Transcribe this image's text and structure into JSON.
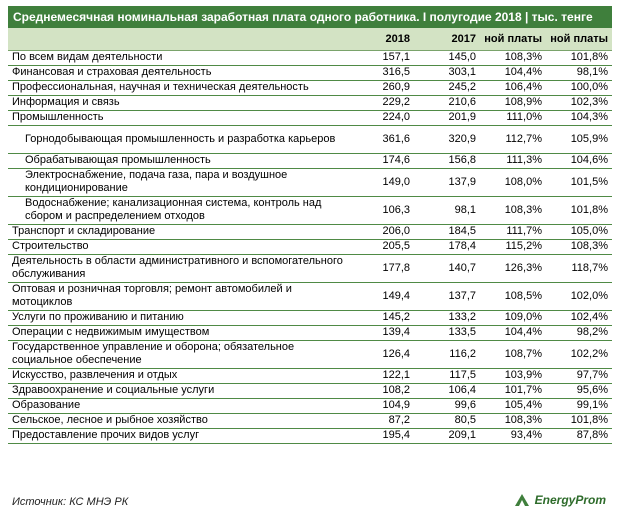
{
  "title": "Среднемесячная номинальная заработная плата одного работника. I полугодие 2018 | тыс. тенге",
  "headers": [
    "",
    "2018",
    "2017",
    "ной платы",
    "ной платы"
  ],
  "rows": [
    {
      "name": "По всем видам деятельности",
      "v2018": "157,1",
      "v2017": "145,0",
      "p1": "108,3%",
      "p2": "101,8%",
      "sub": false,
      "tall": false
    },
    {
      "name": "Финансовая и страховая деятельность",
      "v2018": "316,5",
      "v2017": "303,1",
      "p1": "104,4%",
      "p2": "98,1%",
      "sub": false,
      "tall": false
    },
    {
      "name": "Профессиональная, научная и техническая деятельность",
      "v2018": "260,9",
      "v2017": "245,2",
      "p1": "106,4%",
      "p2": "100,0%",
      "sub": false,
      "tall": false
    },
    {
      "name": "Информация и связь",
      "v2018": "229,2",
      "v2017": "210,6",
      "p1": "108,9%",
      "p2": "102,3%",
      "sub": false,
      "tall": false
    },
    {
      "name": "Промышленность",
      "v2018": "224,0",
      "v2017": "201,9",
      "p1": "111,0%",
      "p2": "104,3%",
      "sub": false,
      "tall": false
    },
    {
      "name": "Горнодобывающая промышленность и разработка карьеров",
      "v2018": "361,6",
      "v2017": "320,9",
      "p1": "112,7%",
      "p2": "105,9%",
      "sub": true,
      "tall": true
    },
    {
      "name": "Обрабатывающая промышленность",
      "v2018": "174,6",
      "v2017": "156,8",
      "p1": "111,3%",
      "p2": "104,6%",
      "sub": true,
      "tall": false
    },
    {
      "name": "Электроснабжение, подача газа, пара и воздушное кондиционирование",
      "v2018": "149,0",
      "v2017": "137,9",
      "p1": "108,0%",
      "p2": "101,5%",
      "sub": true,
      "tall": true
    },
    {
      "name": "Водоснабжение; канализационная система, контроль над сбором и распределением отходов",
      "v2018": "106,3",
      "v2017": "98,1",
      "p1": "108,3%",
      "p2": "101,8%",
      "sub": true,
      "tall": true
    },
    {
      "name": "Транспорт и складирование",
      "v2018": "206,0",
      "v2017": "184,5",
      "p1": "111,7%",
      "p2": "105,0%",
      "sub": false,
      "tall": false
    },
    {
      "name": "Строительство",
      "v2018": "205,5",
      "v2017": "178,4",
      "p1": "115,2%",
      "p2": "108,3%",
      "sub": false,
      "tall": false
    },
    {
      "name": "Деятельность в области административного и вспомогательного обслуживания",
      "v2018": "177,8",
      "v2017": "140,7",
      "p1": "126,3%",
      "p2": "118,7%",
      "sub": false,
      "tall": true
    },
    {
      "name": "Оптовая и розничная торговля; ремонт автомобилей и мотоциклов",
      "v2018": "149,4",
      "v2017": "137,7",
      "p1": "108,5%",
      "p2": "102,0%",
      "sub": false,
      "tall": true
    },
    {
      "name": "Услуги по проживанию и питанию",
      "v2018": "145,2",
      "v2017": "133,2",
      "p1": "109,0%",
      "p2": "102,4%",
      "sub": false,
      "tall": false
    },
    {
      "name": "Операции с недвижимым имуществом",
      "v2018": "139,4",
      "v2017": "133,5",
      "p1": "104,4%",
      "p2": "98,2%",
      "sub": false,
      "tall": false
    },
    {
      "name": "Государственное управление и оборона; обязательное социальное обеспечение",
      "v2018": "126,4",
      "v2017": "116,2",
      "p1": "108,7%",
      "p2": "102,2%",
      "sub": false,
      "tall": true
    },
    {
      "name": "Искусство, развлечения и отдых",
      "v2018": "122,1",
      "v2017": "117,5",
      "p1": "103,9%",
      "p2": "97,7%",
      "sub": false,
      "tall": false
    },
    {
      "name": "Здравоохранение и социальные услуги",
      "v2018": "108,2",
      "v2017": "106,4",
      "p1": "101,7%",
      "p2": "95,6%",
      "sub": false,
      "tall": false
    },
    {
      "name": "Образование",
      "v2018": "104,9",
      "v2017": "99,6",
      "p1": "105,4%",
      "p2": "99,1%",
      "sub": false,
      "tall": false
    },
    {
      "name": "Сельское, лесное и рыбное хозяйство",
      "v2018": "87,2",
      "v2017": "80,5",
      "p1": "108,3%",
      "p2": "101,8%",
      "sub": false,
      "tall": false
    },
    {
      "name": "Предоставление прочих видов услуг",
      "v2018": "195,4",
      "v2017": "209,1",
      "p1": "93,4%",
      "p2": "87,8%",
      "sub": false,
      "tall": false
    }
  ],
  "source": "Источник: КС МНЭ РК",
  "logo_text": "EnergyProm",
  "colors": {
    "title_bg": "#3f7f3c",
    "header_bg": "#d3e3c4",
    "row_line": "#4f8a45",
    "logo": "#2d6b2a"
  },
  "icons": {
    "logo": "energyprom-logo-icon"
  }
}
